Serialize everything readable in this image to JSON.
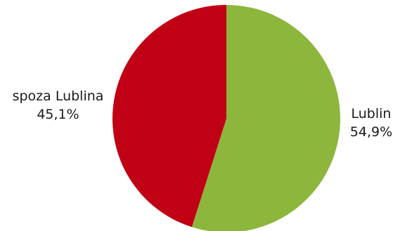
{
  "chart_data": {
    "type": "pie",
    "slices": [
      {
        "label": "Lublin",
        "value": 54.9,
        "value_text": "54,9%",
        "color": "#8db63c"
      },
      {
        "label": "spoza Lublina",
        "value": 45.1,
        "value_text": "45,1%",
        "color": "#c00014"
      }
    ],
    "start_angle": "12 o'clock",
    "direction": "clockwise",
    "legend": "none"
  }
}
